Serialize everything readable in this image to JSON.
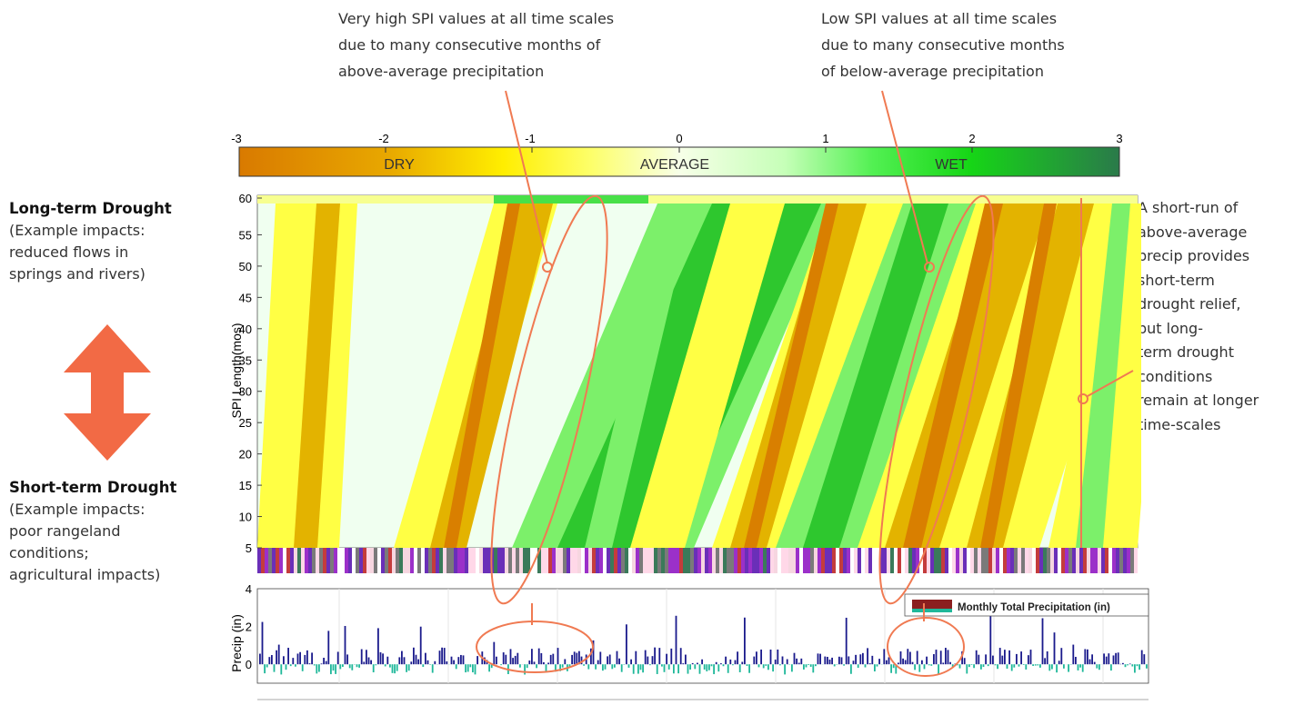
{
  "annotations": {
    "top_left": [
      "Very high SPI values at all time scales",
      "due to many consecutive months of",
      "above-average precipitation"
    ],
    "top_right": [
      "Low SPI values at all time scales",
      "due to many consecutive months",
      "of below-average precipitation"
    ],
    "right": [
      "A short-run of",
      "above-average",
      "precip provides",
      "short-term",
      "drought relief,",
      "but long-",
      "term drought",
      "conditions",
      "remain at longer",
      "time-scales"
    ]
  },
  "sidebar": {
    "long_title": "Long-term Drought",
    "long_desc": [
      "(Example impacts:",
      "reduced flows in",
      "springs and rivers)"
    ],
    "short_title": "Short-term Drought",
    "short_desc": [
      "(Example impacts:",
      "poor rangeland",
      "conditions;",
      "agricultural impacts)"
    ]
  },
  "colors": {
    "arrow": "#f26a45",
    "callout": "#f07a52",
    "very_dry": "#d97f00",
    "dry": "#e3b300",
    "moderately_dry": "#ffff44",
    "near_normal": "#f0fff0",
    "wet": "#7cf06a",
    "very_wet": "#2ec72e",
    "extremely_wet": "#1e8f4a",
    "precip_pos": "#1a1a8c",
    "precip_neg": "#1fb89a"
  },
  "chart_data": [
    {
      "type": "heatmap",
      "colorbar": {
        "ticks": [
          "-3",
          "-2",
          "-1",
          "0",
          "1",
          "2",
          "3"
        ],
        "range": [
          -3,
          3
        ],
        "labels": [
          "DRY",
          "AVERAGE",
          "WET"
        ]
      },
      "ylabel": "SPI Length(mos)",
      "yticks": [
        "60",
        "55",
        "50",
        "45",
        "40",
        "35",
        "30",
        "25",
        "20",
        "15",
        "10",
        "5"
      ],
      "ylim": [
        5,
        60
      ]
    },
    {
      "type": "bar",
      "ylabel": "Precip (in)",
      "yticks": [
        "4",
        "2",
        "0"
      ],
      "ylim": [
        -1,
        4
      ],
      "legend": "Monthly Total Precipitation (in)",
      "legend_position": "top-right"
    }
  ]
}
